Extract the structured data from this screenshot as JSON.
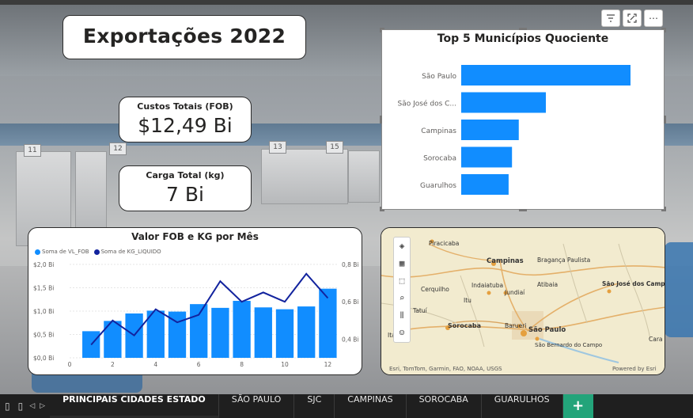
{
  "report": {
    "title": "Exportações 2022"
  },
  "kpis": [
    {
      "label": "Custos Totais (FOB)",
      "value": "$12,49 Bi"
    },
    {
      "label": "Carga Total (kg)",
      "value": "7 Bi"
    }
  ],
  "visual_header": {
    "filter_icon": "filter-icon",
    "focus_icon": "focus-mode-icon",
    "more_icon": "more-options-icon"
  },
  "top5_chart": {
    "title": "Top 5 Municípios Quociente",
    "color": "#118DFF"
  },
  "combo_chart": {
    "title": "Valor FOB e KG por Mês",
    "legend": [
      "Soma de VL_FOB",
      "Soma de KG_LIQUIDO"
    ],
    "bar_color": "#118DFF",
    "line_color": "#12239E",
    "y_left_ticks": [
      "$0,0 Bi",
      "$0,5 Bi",
      "$1,0 Bi",
      "$1,5 Bi",
      "$2,0 Bi"
    ],
    "y_right_ticks": [
      "0,4 Bi",
      "0,6 Bi",
      "0,8 Bi"
    ],
    "x_ticks": [
      "0",
      "2",
      "4",
      "6",
      "8",
      "10",
      "12"
    ]
  },
  "chart_data": [
    {
      "type": "bar",
      "orientation": "horizontal",
      "title": "Top 5 Municípios Quociente",
      "categories": [
        "São Paulo",
        "São José dos C...",
        "Campinas",
        "Sorocaba",
        "Guarulhos"
      ],
      "values": [
        1.0,
        0.5,
        0.34,
        0.3,
        0.28
      ],
      "value_scale": "relative"
    },
    {
      "type": "bar",
      "title": "Valor FOB e KG por Mês",
      "x": [
        1,
        2,
        3,
        4,
        5,
        6,
        7,
        8,
        9,
        10,
        11,
        12
      ],
      "xlim": [
        0,
        12.5
      ],
      "series": [
        {
          "name": "Soma de VL_FOB",
          "type": "bar",
          "axis": "left",
          "unit": "Bi",
          "values": [
            0.57,
            0.79,
            0.95,
            1.01,
            0.99,
            1.15,
            1.07,
            1.22,
            1.08,
            1.04,
            1.1,
            1.48
          ]
        },
        {
          "name": "Soma de KG_LIQUIDO",
          "type": "line",
          "axis": "right",
          "unit": "Bi",
          "values": [
            0.37,
            0.5,
            0.42,
            0.56,
            0.49,
            0.53,
            0.71,
            0.6,
            0.65,
            0.6,
            0.75,
            0.62
          ]
        }
      ],
      "ylim_left": [
        0,
        2.0
      ],
      "ylim_right": [
        0.3,
        0.8
      ]
    }
  ],
  "map": {
    "attribution": "Esri, TomTom, Garmin, FAO, NOAA, USGS",
    "powered_by": "Powered by Esri",
    "cities": [
      {
        "name": "Piracicaba"
      },
      {
        "name": "Campinas"
      },
      {
        "name": "Bragança Paulista"
      },
      {
        "name": "Indaiatuba"
      },
      {
        "name": "Jundiaí"
      },
      {
        "name": "Atibaia"
      },
      {
        "name": "São José dos Campos"
      },
      {
        "name": "Cerquilho"
      },
      {
        "name": "Itu"
      },
      {
        "name": "Tatuí"
      },
      {
        "name": "Sorocaba"
      },
      {
        "name": "Barueri"
      },
      {
        "name": "São Paulo"
      },
      {
        "name": "São Bernardo do Campo"
      },
      {
        "name": "Cara"
      },
      {
        "name": "Ita"
      }
    ],
    "tools": [
      "layers-icon",
      "qr-select-icon",
      "rect-select-icon",
      "search-icon",
      "chart-icon",
      "person-icon"
    ]
  },
  "tabs": {
    "items": [
      "PRINCIPAIS CIDADES ESTADO",
      "SÃO PAULO",
      "SJC",
      "CAMPINAS",
      "SOROCABA",
      "GUARULHOS"
    ],
    "active": 0,
    "add_label": "+"
  }
}
